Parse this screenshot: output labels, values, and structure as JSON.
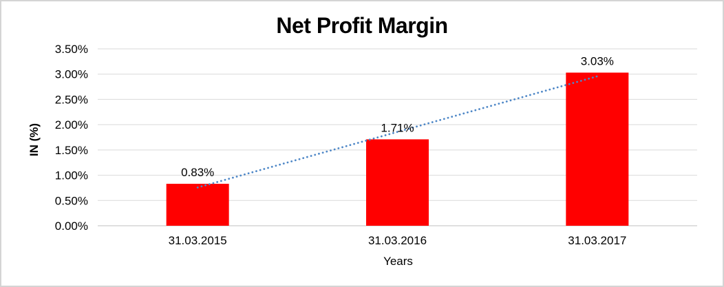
{
  "chart_data": {
    "type": "bar",
    "title": "Net Profit Margin",
    "xlabel": "Years",
    "ylabel": "IN (%)",
    "categories": [
      "31.03.2015",
      "31.03.2016",
      "31.03.2017"
    ],
    "values": [
      0.83,
      1.71,
      3.03
    ],
    "value_labels": [
      "0.83%",
      "1.71%",
      "3.03%"
    ],
    "y_ticks": [
      0.0,
      0.5,
      1.0,
      1.5,
      2.0,
      2.5,
      3.0,
      3.5
    ],
    "y_tick_labels": [
      "0.00%",
      "0.50%",
      "1.00%",
      "1.50%",
      "2.00%",
      "2.50%",
      "3.00%",
      "3.50%"
    ],
    "ylim": [
      0,
      3.5
    ],
    "grid": true,
    "legend": "none",
    "bar_color": "#ff0000",
    "gridline_color": "#d9d9d9",
    "axis_line_color": "#bfbfbf",
    "text_color": "#000000",
    "trendline": {
      "type": "linear",
      "style": "dotted",
      "color": "#4e87c7",
      "fitted_values": [
        0.757,
        1.857,
        2.957
      ]
    }
  }
}
